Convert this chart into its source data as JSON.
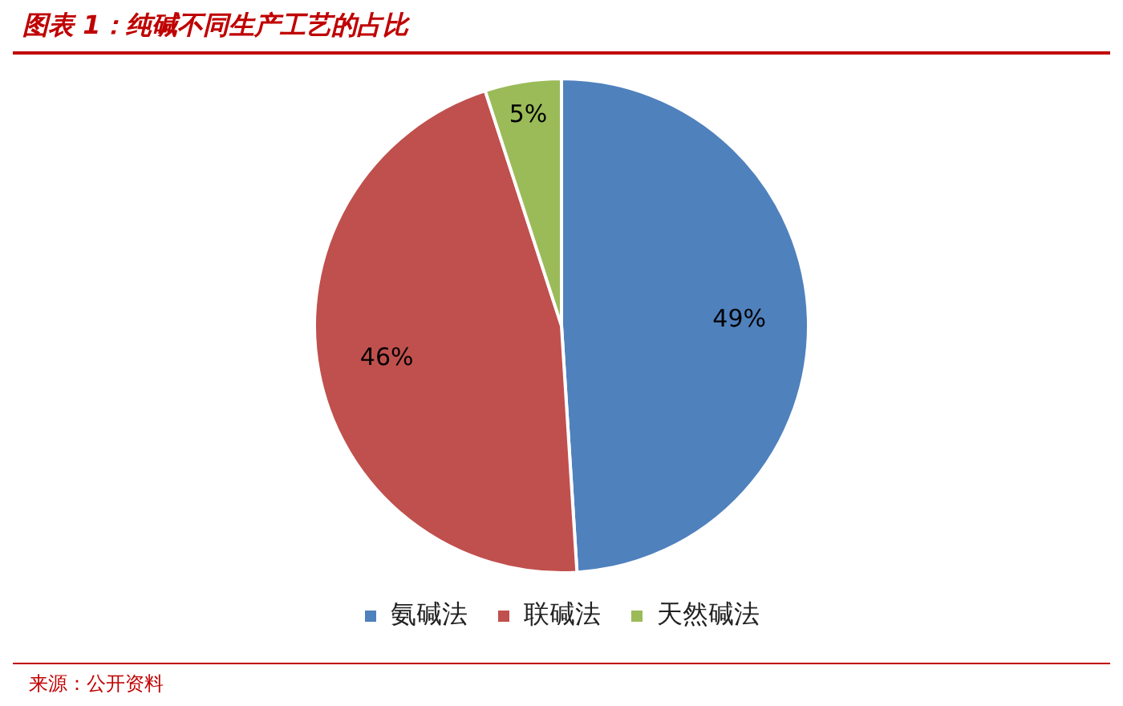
{
  "chart_data": {
    "type": "pie",
    "title": "图表 1：纯碱不同生产工艺的占比",
    "categories": [
      "氨碱法",
      "联碱法",
      "天然碱法"
    ],
    "values": [
      49,
      46,
      5
    ],
    "colors": [
      "#4f81bd",
      "#c0504d",
      "#9bbb59"
    ],
    "value_labels": [
      "49%",
      "46%",
      "5%"
    ],
    "legend": "bottom",
    "annotations": [
      "来源：公开资料"
    ]
  }
}
